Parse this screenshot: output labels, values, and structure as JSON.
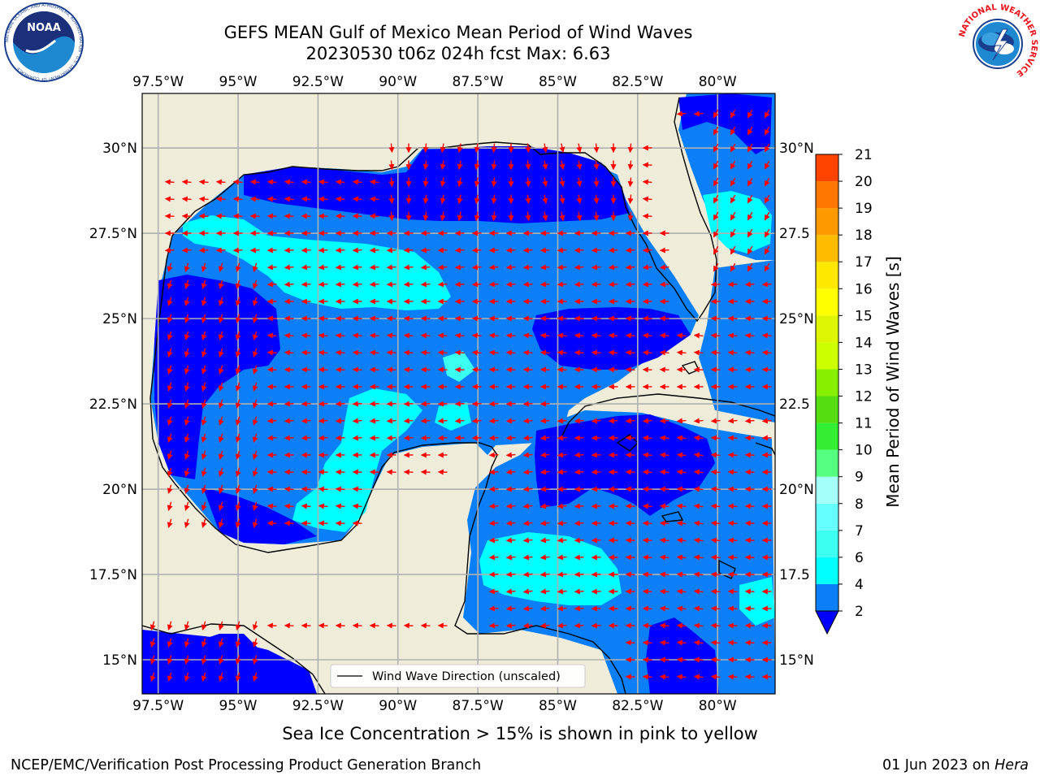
{
  "header": {
    "title_line1": "GEFS MEAN Gulf of Mexico Mean Period of Wind Waves",
    "title_line2": "20230530 t06z 024h fcst   Max: 6.63"
  },
  "logos": {
    "noaa_logo_text": "NOAA",
    "noaa_ring_text": "NATIONAL OCEANIC AND ATMOSPHERIC ADMINISTRATION · U.S. DEPARTMENT OF COMMERCE",
    "nws_ring_text": "NATIONAL WEATHER SERVICE"
  },
  "map": {
    "lon_labels": [
      "97.5°W",
      "95°W",
      "92.5°W",
      "90°W",
      "87.5°W",
      "85°W",
      "82.5°W",
      "80°W"
    ],
    "lon_values": [
      -97.5,
      -95,
      -92.5,
      -90,
      -87.5,
      -85,
      -82.5,
      -80
    ],
    "lat_labels_left": [
      "30°N",
      "27.5°N",
      "25°N",
      "22.5°N",
      "20°N",
      "17.5°N",
      "15°N"
    ],
    "lat_labels_right": [
      "30°N",
      "27.5",
      "25°N",
      "22.5",
      "20°N",
      "17.5",
      "15°N"
    ],
    "lat_values": [
      30,
      27.5,
      25,
      22.5,
      20,
      17.5,
      15
    ],
    "extent": {
      "lon_min": -98,
      "lon_max": -78.2,
      "lat_min": 14,
      "lat_max": 31.6
    },
    "grid": true,
    "legend_label": "Wind Wave Direction (unscaled)",
    "legend_position": "bottom-center",
    "colors": {
      "land": "#efedd9",
      "coast": "#000000",
      "grid": "#b0b0b0",
      "arrow": "#ff0000"
    }
  },
  "colorbar": {
    "label": "Mean Period of Wind Waves [s]",
    "ticks": [
      "2",
      "4",
      "6",
      "7",
      "8",
      "9",
      "10",
      "11",
      "12",
      "13",
      "14",
      "15",
      "16",
      "17",
      "18",
      "19",
      "20",
      "21"
    ],
    "colors": [
      "#0a7ff7",
      "#00ffff",
      "#3bfff0",
      "#66ffff",
      "#a3fff7",
      "#55ff7f",
      "#33ee33",
      "#55dd11",
      "#88ee00",
      "#ccff00",
      "#ddf500",
      "#ffff00",
      "#ffe800",
      "#ffbb00",
      "#ff9900",
      "#ff7700",
      "#ff4400",
      "#ff1100"
    ],
    "under_color": "#0000ff"
  },
  "footer": {
    "subtitle": "Sea Ice Concentration > 15% is shown in pink to yellow",
    "left": "NCEP/EMC/Verification Post Processing Product Generation Branch",
    "right_prefix": "01 Jun 2023 on ",
    "right_host": "Hera"
  }
}
